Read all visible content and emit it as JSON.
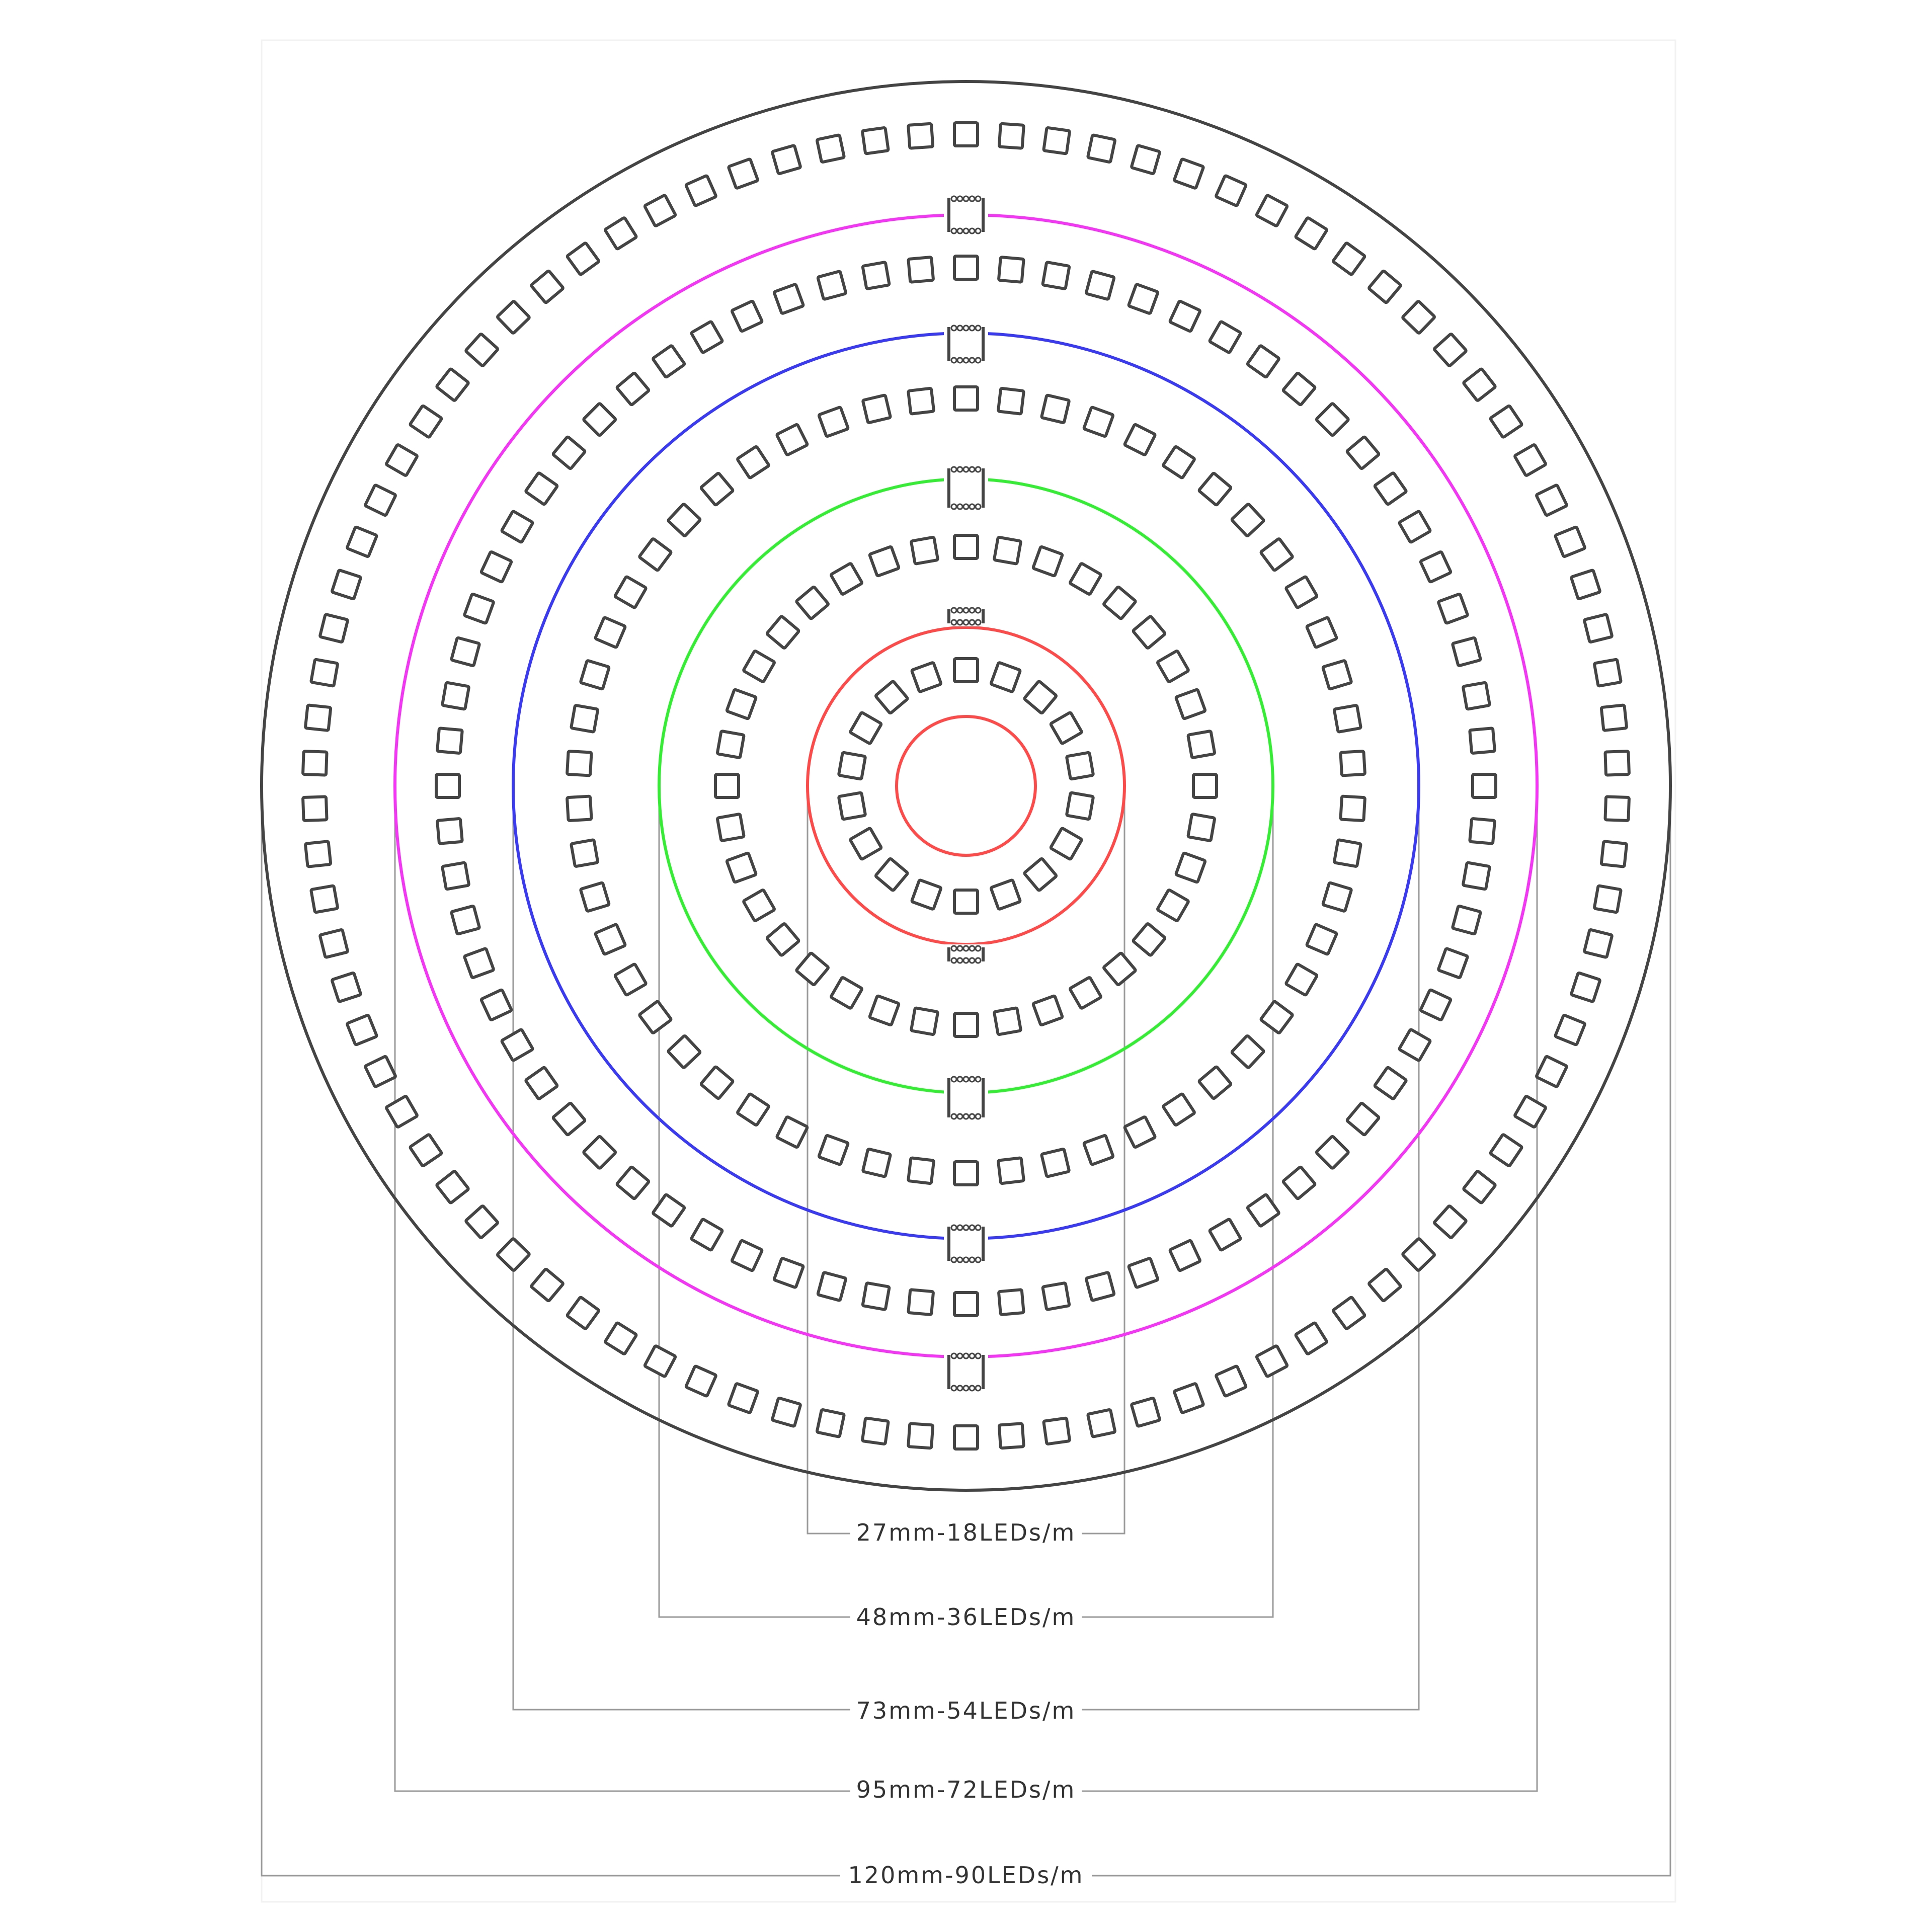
{
  "rings": [
    {
      "id": "ring-27",
      "label": "27mm-18LEDs/m",
      "color": "#ff4a4a",
      "led_count": 18
    },
    {
      "id": "ring-48",
      "label": "48mm-36LEDs/m",
      "color": "#33ee33",
      "led_count": 36
    },
    {
      "id": "ring-73",
      "label": "73mm-54LEDs/m",
      "color": "#3a3af2",
      "led_count": 54
    },
    {
      "id": "ring-95",
      "label": "95mm-72LEDs/m",
      "color": "#f535f5",
      "led_count": 72
    },
    {
      "id": "ring-120",
      "label": "120mm-90LEDs/m",
      "color": "#444444",
      "led_count": 90
    }
  ]
}
